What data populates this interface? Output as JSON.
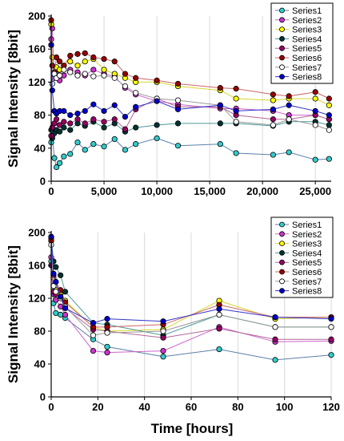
{
  "chart_data": [
    {
      "type": "line",
      "title": "",
      "xlabel": "",
      "ylabel": "Signal Intensity [8bit]",
      "xlim": [
        0,
        26500
      ],
      "ylim": [
        0,
        200
      ],
      "xticks": [
        0,
        5000,
        10000,
        15000,
        20000,
        25000
      ],
      "xtick_labels": [
        "0",
        "5,000",
        "10,000",
        "15,000",
        "20,000",
        "25,000"
      ],
      "yticks": [
        0,
        40,
        80,
        120,
        160,
        200
      ],
      "ytick_labels": [
        "0",
        "40",
        "80",
        "120",
        "160",
        "200"
      ],
      "grid": "vertical",
      "legend": "top-right",
      "series": [
        {
          "name": "Series1",
          "color": "#33cccc",
          "line": "#5b7fa8",
          "x": [
            0,
            100,
            300,
            500,
            800,
            1200,
            1800,
            2500,
            3200,
            4000,
            5000,
            6000,
            7000,
            8000,
            10000,
            12000,
            16000,
            17500,
            21000,
            22500,
            25000,
            26300
          ],
          "y": [
            47,
            55,
            28,
            17,
            22,
            30,
            33,
            47,
            38,
            45,
            42,
            51,
            38,
            45,
            52,
            43,
            45,
            34,
            32,
            35,
            26,
            27
          ]
        },
        {
          "name": "Series2",
          "color": "#cc33cc",
          "line": "#cc66cc",
          "x": [
            0,
            100,
            300,
            500,
            800,
            1200,
            1800,
            2500,
            3200,
            4000,
            5000,
            6000,
            7000,
            8000,
            10000,
            12000,
            16000,
            17500,
            21000,
            22500,
            25000,
            26300
          ],
          "y": [
            172,
            185,
            125,
            130,
            122,
            128,
            135,
            132,
            128,
            135,
            130,
            127,
            113,
            105,
            97,
            93,
            88,
            88,
            85,
            80,
            80,
            75
          ]
        },
        {
          "name": "Series3",
          "color": "#ffff00",
          "line": "#d6d62e",
          "x": [
            0,
            100,
            300,
            500,
            800,
            1200,
            1800,
            2500,
            3200,
            4000,
            5000,
            6000,
            7000,
            8000,
            10000,
            12000,
            16000,
            17500,
            21000,
            22500,
            25000,
            26300
          ],
          "y": [
            190,
            150,
            130,
            138,
            135,
            140,
            145,
            140,
            145,
            148,
            135,
            130,
            125,
            120,
            120,
            115,
            110,
            100,
            98,
            100,
            100,
            92
          ]
        },
        {
          "name": "Series4",
          "color": "#003333",
          "line": "#4d9999",
          "x": [
            0,
            100,
            300,
            500,
            800,
            1200,
            1800,
            2500,
            3200,
            4000,
            5000,
            6000,
            7000,
            8000,
            10000,
            12000,
            16000,
            17500,
            21000,
            22500,
            25000,
            26300
          ],
          "y": [
            62,
            52,
            58,
            62,
            60,
            65,
            62,
            70,
            67,
            72,
            65,
            70,
            60,
            65,
            68,
            70,
            70,
            70,
            67,
            72,
            72,
            68
          ]
        },
        {
          "name": "Series5",
          "color": "#990066",
          "line": "#b36699",
          "x": [
            0,
            100,
            300,
            500,
            800,
            1200,
            1800,
            2500,
            3200,
            4000,
            5000,
            6000,
            7000,
            8000,
            10000,
            12000,
            16000,
            17500,
            21000,
            22500,
            25000,
            26300
          ],
          "y": [
            55,
            65,
            70,
            75,
            68,
            72,
            70,
            75,
            70,
            75,
            72,
            75,
            63,
            87,
            100,
            90,
            90,
            80,
            75,
            75,
            80,
            75
          ]
        },
        {
          "name": "Series6",
          "color": "#990000",
          "line": "#cc6666",
          "x": [
            0,
            100,
            300,
            500,
            800,
            1200,
            1800,
            2500,
            3200,
            4000,
            5000,
            6000,
            7000,
            8000,
            10000,
            12000,
            16000,
            17500,
            21000,
            22500,
            25000,
            26300
          ],
          "y": [
            195,
            140,
            132,
            150,
            145,
            140,
            152,
            154,
            155,
            150,
            148,
            145,
            130,
            125,
            122,
            118,
            113,
            112,
            105,
            103,
            108,
            100
          ]
        },
        {
          "name": "Series7",
          "color": "#ffffff",
          "line": "#999999",
          "x": [
            0,
            100,
            300,
            500,
            800,
            1200,
            1800,
            2500,
            3200,
            4000,
            5000,
            6000,
            7000,
            8000,
            10000,
            12000,
            16000,
            17500,
            21000,
            22500,
            25000,
            26300
          ],
          "y": [
            165,
            118,
            130,
            125,
            128,
            135,
            132,
            128,
            130,
            127,
            128,
            125,
            115,
            107,
            100,
            98,
            92,
            72,
            68,
            75,
            68,
            62
          ]
        },
        {
          "name": "Series8",
          "color": "#0000cc",
          "line": "#3333cc",
          "x": [
            0,
            100,
            300,
            500,
            800,
            1200,
            1800,
            2500,
            3200,
            4000,
            5000,
            6000,
            7000,
            8000,
            10000,
            12000,
            16000,
            17500,
            21000,
            22500,
            25000,
            26300
          ],
          "y": [
            165,
            110,
            85,
            82,
            85,
            85,
            80,
            82,
            85,
            93,
            85,
            92,
            78,
            90,
            97,
            87,
            92,
            85,
            87,
            92,
            85,
            80
          ]
        }
      ]
    },
    {
      "type": "line",
      "title": "",
      "xlabel": "Time [hours]",
      "ylabel": "Signal Intensity [8bit]",
      "xlim": [
        0,
        120
      ],
      "ylim": [
        0,
        200
      ],
      "xticks": [
        0,
        20,
        40,
        60,
        80,
        100,
        120
      ],
      "xtick_labels": [
        "0",
        "20",
        "40",
        "60",
        "80",
        "100",
        "120"
      ],
      "yticks": [
        0,
        40,
        80,
        120,
        160,
        200
      ],
      "ytick_labels": [
        "0",
        "40",
        "80",
        "120",
        "160",
        "200"
      ],
      "grid": "vertical",
      "legend": "top-right",
      "series": [
        {
          "name": "Series1",
          "color": "#33cccc",
          "line": "#5b7fa8",
          "x": [
            0,
            1,
            2,
            4,
            6,
            18,
            24,
            48,
            72,
            96,
            120
          ],
          "y": [
            165,
            114,
            102,
            100,
            96,
            70,
            61,
            49,
            58,
            45,
            51
          ]
        },
        {
          "name": "Series2",
          "color": "#cc33cc",
          "line": "#cc66cc",
          "x": [
            0,
            1,
            2,
            4,
            6,
            18,
            24,
            48,
            72,
            96,
            120
          ],
          "y": [
            170,
            125,
            118,
            110,
            100,
            56,
            54,
            56,
            85,
            67,
            68
          ]
        },
        {
          "name": "Series3",
          "color": "#ffff00",
          "line": "#d6d62e",
          "x": [
            0,
            1,
            2,
            4,
            6,
            18,
            24,
            48,
            72,
            96,
            120
          ],
          "y": [
            190,
            145,
            130,
            125,
            117,
            85,
            80,
            82,
            117,
            95,
            97
          ]
        },
        {
          "name": "Series4",
          "color": "#003333",
          "line": "#4d9999",
          "x": [
            0,
            1,
            2,
            4,
            6,
            18,
            24,
            48,
            72,
            96,
            120
          ],
          "y": [
            193,
            165,
            158,
            148,
            128,
            90,
            88,
            75,
            100,
            85,
            85
          ]
        },
        {
          "name": "Series5",
          "color": "#990066",
          "line": "#b36699",
          "x": [
            0,
            1,
            2,
            4,
            6,
            18,
            24,
            48,
            72,
            96,
            120
          ],
          "y": [
            160,
            128,
            125,
            120,
            108,
            82,
            80,
            72,
            83,
            70,
            70
          ]
        },
        {
          "name": "Series6",
          "color": "#990000",
          "line": "#cc6666",
          "x": [
            0,
            1,
            2,
            4,
            6,
            18,
            24,
            48,
            72,
            96,
            120
          ],
          "y": [
            190,
            148,
            140,
            130,
            115,
            85,
            85,
            88,
            112,
            97,
            97
          ]
        },
        {
          "name": "Series7",
          "color": "#ffffff",
          "line": "#999999",
          "x": [
            0,
            1,
            2,
            4,
            6,
            18,
            24,
            48,
            72,
            96,
            120
          ],
          "y": [
            185,
            135,
            128,
            120,
            110,
            75,
            78,
            80,
            100,
            85,
            85
          ]
        },
        {
          "name": "Series8",
          "color": "#0000cc",
          "line": "#3333cc",
          "x": [
            0,
            1,
            2,
            4,
            6,
            18,
            24,
            48,
            72,
            96,
            120
          ],
          "y": [
            195,
            150,
            140,
            122,
            108,
            90,
            95,
            92,
            107,
            97,
            95
          ]
        }
      ]
    }
  ]
}
